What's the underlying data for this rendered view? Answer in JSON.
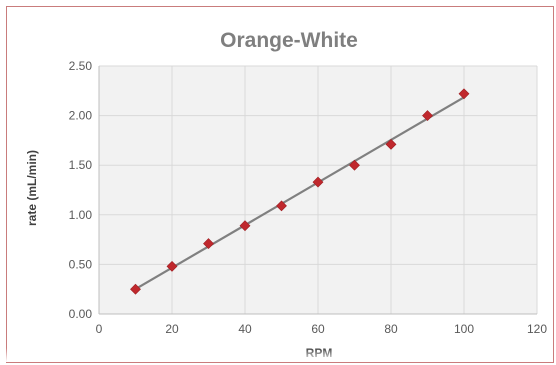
{
  "chart_data": {
    "type": "scatter",
    "title": "Orange-White",
    "xlabel": "RPM",
    "ylabel": "rate (mL/min)",
    "xlim": [
      0,
      120
    ],
    "ylim": [
      0,
      2.5
    ],
    "x_ticks": [
      0,
      20,
      40,
      60,
      80,
      100,
      120
    ],
    "y_ticks": [
      0,
      0.5,
      1.0,
      1.5,
      2.0,
      2.5
    ],
    "x_tick_labels": [
      "0",
      "20",
      "40",
      "60",
      "80",
      "100",
      "120"
    ],
    "y_tick_labels": [
      "0.00",
      "0.50",
      "1.00",
      "1.50",
      "2.00",
      "2.50"
    ],
    "grid": true,
    "series": [
      {
        "x": [
          10,
          20,
          30,
          40,
          50,
          60,
          70,
          80,
          90,
          100
        ],
        "y": [
          0.25,
          0.48,
          0.71,
          0.89,
          1.09,
          1.33,
          1.5,
          1.71,
          2.0,
          2.22
        ],
        "color": "#c0282d",
        "marker": "diamond"
      }
    ],
    "trendline": {
      "type": "linear",
      "x_range": [
        10,
        100
      ],
      "color": "#808080"
    },
    "colors": {
      "plot_background": "#f2f2f2",
      "gridline": "#d9d9d9",
      "frame_border": "#c97c7c"
    }
  }
}
